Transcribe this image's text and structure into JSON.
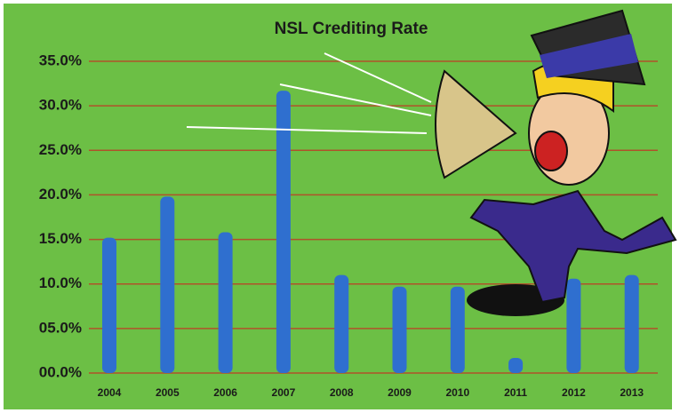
{
  "chart_data": {
    "type": "bar",
    "title": "NSL Crediting Rate",
    "categories": [
      "2004",
      "2005",
      "2006",
      "2007",
      "2008",
      "2009",
      "2010",
      "2011",
      "2012",
      "2013"
    ],
    "values": [
      15.2,
      19.8,
      15.8,
      31.7,
      11.0,
      9.7,
      9.7,
      1.7,
      10.6,
      11.0
    ],
    "color": "#2f6fcf",
    "ylim": [
      0,
      35
    ],
    "yticks": [
      {
        "value": 0,
        "label": "00.0%"
      },
      {
        "value": 5,
        "label": "05.0%"
      },
      {
        "value": 10,
        "label": "10.0%"
      },
      {
        "value": 15,
        "label": "15.0%"
      },
      {
        "value": 20,
        "label": "20.0%"
      },
      {
        "value": 25,
        "label": "25.0%"
      },
      {
        "value": 30,
        "label": "30.0%"
      },
      {
        "value": 35,
        "label": "35.0%"
      }
    ],
    "grid": true
  }
}
